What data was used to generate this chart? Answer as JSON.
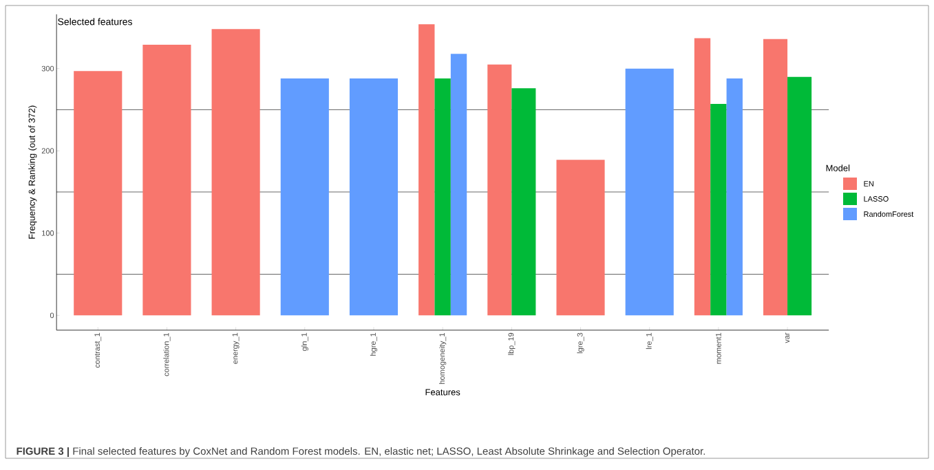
{
  "chart_data": {
    "type": "bar",
    "title": "Selected features",
    "xlabel": "Features",
    "ylabel": "Frequency & Ranking (out of 372)",
    "legend_title": "Model",
    "categories": [
      "contrast_1",
      "correlation_1",
      "energy_1",
      "gln_1",
      "hgre_1",
      "homogeneity_1",
      "lbp_19",
      "lgre_3",
      "lre_1",
      "moment1",
      "var"
    ],
    "series": [
      {
        "name": "EN",
        "color": "#f8766d",
        "values": [
          297,
          329,
          348,
          null,
          null,
          354,
          305,
          189,
          null,
          337,
          336
        ]
      },
      {
        "name": "LASSO",
        "color": "#00ba38",
        "values": [
          null,
          null,
          null,
          null,
          null,
          288,
          276,
          null,
          null,
          257,
          290
        ]
      },
      {
        "name": "RandomForest",
        "color": "#619cff",
        "values": [
          null,
          null,
          null,
          288,
          288,
          318,
          null,
          null,
          300,
          288,
          null
        ]
      }
    ],
    "ylim": [
      -18,
      366
    ],
    "yticks": [
      0,
      100,
      200,
      300
    ],
    "grid": "y",
    "legend": "right",
    "annotations": [
      "**FIGURE 3 |** Final selected features by CoxNet and Random Forest models. EN, elastic net; LASSO, Least Absolute Shrinkage and Selection Operator."
    ]
  }
}
